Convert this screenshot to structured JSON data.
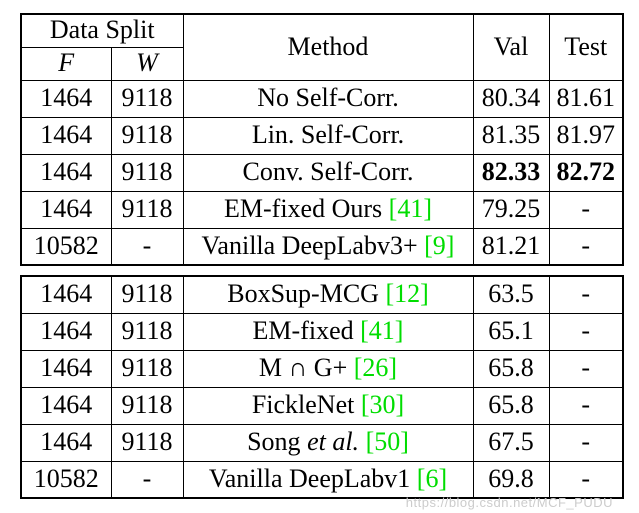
{
  "colors": {
    "citation_green": "#00dd00",
    "watermark_gray": "#cccccc"
  },
  "header": {
    "data_split": "Data Split",
    "f": "F",
    "w": "W",
    "method": "Method",
    "val": "Val",
    "test": "Test"
  },
  "block1": [
    {
      "f": "1464",
      "w": "9118",
      "method": "No Self-Corr.",
      "italic": "",
      "cite": "",
      "val": "80.34",
      "test": "81.61"
    },
    {
      "f": "1464",
      "w": "9118",
      "method": "Lin. Self-Corr.",
      "italic": "",
      "cite": "",
      "val": "81.35",
      "test": "81.97"
    },
    {
      "f": "1464",
      "w": "9118",
      "method": "Conv. Self-Corr.",
      "italic": "",
      "cite": "",
      "val": "82.33",
      "test": "82.72"
    },
    {
      "f": "1464",
      "w": "9118",
      "method": "EM-fixed Ours ",
      "italic": "",
      "cite": "[41]",
      "val": "79.25",
      "test": "-"
    },
    {
      "f": "10582",
      "w": "-",
      "method": "Vanilla DeepLabv3+ ",
      "italic": "",
      "cite": "[9]",
      "val": "81.21",
      "test": "-"
    }
  ],
  "block2": [
    {
      "f": "1464",
      "w": "9118",
      "method": "BoxSup-MCG ",
      "italic": "",
      "cite": "[12]",
      "val": "63.5",
      "test": "-"
    },
    {
      "f": "1464",
      "w": "9118",
      "method": "EM-fixed ",
      "italic": "",
      "cite": "[41]",
      "val": "65.1",
      "test": "-"
    },
    {
      "f": "1464",
      "w": "9118",
      "method": "M ∩ G+ ",
      "italic": "",
      "cite": "[26]",
      "val": "65.8",
      "test": "-"
    },
    {
      "f": "1464",
      "w": "9118",
      "method": "FickleNet ",
      "italic": "",
      "cite": "[30]",
      "val": "65.8",
      "test": "-"
    },
    {
      "f": "1464",
      "w": "9118",
      "method": "Song ",
      "italic": "et al. ",
      "cite": "[50]",
      "val": "67.5",
      "test": "-"
    },
    {
      "f": "10582",
      "w": "-",
      "method": "Vanilla DeepLabv1 ",
      "italic": "",
      "cite": "[6]",
      "val": "69.8",
      "test": "-"
    }
  ],
  "watermark": "https://blog.csdn.net/MCF_PUDU"
}
